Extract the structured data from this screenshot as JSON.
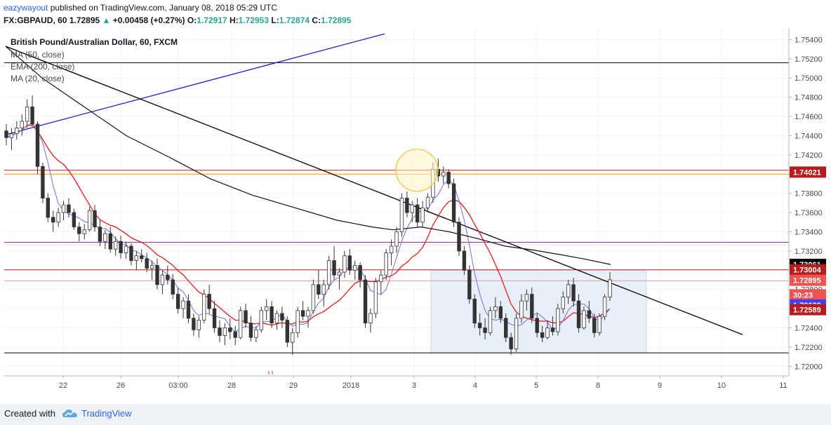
{
  "header": {
    "user": "eazywayout",
    "published_text": "published on TradingView.com, January 08, 2018 05:29 UTC",
    "symbol": "FX:GBPAUD, 60",
    "last": "1.72895",
    "change_arrow": "▲",
    "change": "+0.00458 (+0.27%)",
    "o_label": "O:",
    "o_value": "1.72917",
    "h_label": "H:",
    "h_value": "1.72953",
    "l_label": "L:",
    "l_value": "1.72874",
    "c_label": "C:",
    "c_value": "1.72895"
  },
  "legend": {
    "title": "British Pound/Australian Dollar, 60, FXCM",
    "items": [
      "MA (50, close)",
      "EMA (200, close)",
      "MA (20, close)"
    ]
  },
  "price_axis": {
    "ticks": [
      "1.75400",
      "1.75200",
      "1.75000",
      "1.74800",
      "1.74600",
      "1.74400",
      "1.74200",
      "1.74000",
      "1.73800",
      "1.73600",
      "1.73400",
      "1.73200",
      "1.73000",
      "1.72800",
      "1.72600",
      "1.72400",
      "1.72200",
      "1.72000"
    ],
    "price_labels": [
      {
        "text": "1.74021",
        "price": 1.74021,
        "bg": "#b71c1c",
        "fg": "#ffffff"
      },
      {
        "text": "1.73061",
        "price": 1.73061,
        "bg": "#000000",
        "fg": "#ffffff"
      },
      {
        "text": "1.73004",
        "price": 1.73004,
        "bg": "#b71c1c",
        "fg": "#ffffff"
      },
      {
        "text": "1.72895",
        "price": 1.72895,
        "bg": "#ef5350",
        "fg": "#ffffff"
      },
      {
        "text": "30:23",
        "price": 1.72744,
        "bg": "#ef5350",
        "fg": "#ffffff"
      },
      {
        "text": "1.72638",
        "price": 1.72638,
        "bg": "#3f3fff",
        "fg": "#ffffff"
      },
      {
        "text": "1.72589",
        "price": 1.72589,
        "bg": "#b71c1c",
        "fg": "#ffffff"
      }
    ]
  },
  "time_axis": {
    "ticks": [
      {
        "label": "22",
        "t": 90
      },
      {
        "label": "26",
        "t": 172
      },
      {
        "label": "03:00",
        "t": 254
      },
      {
        "label": "28",
        "t": 330
      },
      {
        "label": "29",
        "t": 418
      },
      {
        "label": "2018",
        "t": 500
      },
      {
        "label": "3",
        "t": 590
      },
      {
        "label": "4",
        "t": 677
      },
      {
        "label": "5",
        "t": 764
      },
      {
        "label": "8",
        "t": 852
      },
      {
        "label": "9",
        "t": 940
      },
      {
        "label": "10",
        "t": 1028
      },
      {
        "label": "11",
        "t": 1116
      }
    ]
  },
  "chart_data": {
    "type": "candlestick",
    "symbol": "GBPAUD",
    "timeframe": "60",
    "ylim": [
      1.719,
      1.7552
    ],
    "horizontal_levels": [
      {
        "price": 1.7516,
        "color": "#000000"
      },
      {
        "price": 1.7404,
        "color": "#b71c1c"
      },
      {
        "price": 1.74,
        "color": "#ff9800"
      },
      {
        "price": 1.7329,
        "color": "#9c27b0"
      },
      {
        "price": 1.73004,
        "color": "#b71c1c"
      },
      {
        "price": 1.7289,
        "color": "#ef9a9a"
      },
      {
        "price": 1.7214,
        "color": "#000000"
      }
    ],
    "trendlines": [
      {
        "t1": 8,
        "p1": 1.7441,
        "t2": 548,
        "p2": 1.7546,
        "color": "#1c1cd6"
      },
      {
        "t1": 8,
        "p1": 1.7533,
        "t2": 1058,
        "p2": 1.7233,
        "color": "#000000"
      }
    ],
    "candles_ohlc": [
      [
        1.7445,
        1.7452,
        1.743,
        1.7438
      ],
      [
        1.7438,
        1.7448,
        1.7425,
        1.7442
      ],
      [
        1.7442,
        1.7455,
        1.7436,
        1.7448
      ],
      [
        1.7448,
        1.7462,
        1.744,
        1.7455
      ],
      [
        1.7455,
        1.7478,
        1.7448,
        1.747
      ],
      [
        1.747,
        1.7482,
        1.745,
        1.7452
      ],
      [
        1.7452,
        1.7455,
        1.74,
        1.7408
      ],
      [
        1.7408,
        1.7412,
        1.737,
        1.7375
      ],
      [
        1.7375,
        1.738,
        1.735,
        1.7355
      ],
      [
        1.7355,
        1.7362,
        1.734,
        1.735
      ],
      [
        1.735,
        1.7365,
        1.7345,
        1.736
      ],
      [
        1.736,
        1.7372,
        1.7352,
        1.7368
      ],
      [
        1.7368,
        1.7375,
        1.7355,
        1.736
      ],
      [
        1.736,
        1.7364,
        1.7342,
        1.7345
      ],
      [
        1.7345,
        1.735,
        1.733,
        1.7338
      ],
      [
        1.7338,
        1.7348,
        1.7332,
        1.7342
      ],
      [
        1.7342,
        1.7366,
        1.734,
        1.7362
      ],
      [
        1.7362,
        1.7368,
        1.734,
        1.7345
      ],
      [
        1.7345,
        1.7352,
        1.7325,
        1.733
      ],
      [
        1.733,
        1.7342,
        1.7322,
        1.7338
      ],
      [
        1.7338,
        1.7345,
        1.7318,
        1.7322
      ],
      [
        1.7322,
        1.7335,
        1.7315,
        1.733
      ],
      [
        1.733,
        1.7336,
        1.7312,
        1.7318
      ],
      [
        1.7318,
        1.733,
        1.7312,
        1.7325
      ],
      [
        1.7325,
        1.7328,
        1.7305,
        1.731
      ],
      [
        1.731,
        1.732,
        1.73,
        1.7315
      ],
      [
        1.7315,
        1.7322,
        1.7308,
        1.7312
      ],
      [
        1.7312,
        1.7318,
        1.7298,
        1.7302
      ],
      [
        1.7302,
        1.731,
        1.729,
        1.7305
      ],
      [
        1.7305,
        1.7312,
        1.728,
        1.7285
      ],
      [
        1.7285,
        1.73,
        1.7275,
        1.7295
      ],
      [
        1.7295,
        1.7305,
        1.7285,
        1.729
      ],
      [
        1.729,
        1.7296,
        1.727,
        1.7275
      ],
      [
        1.7275,
        1.7282,
        1.7255,
        1.726
      ],
      [
        1.726,
        1.7272,
        1.725,
        1.7268
      ],
      [
        1.7268,
        1.7275,
        1.7245,
        1.725
      ],
      [
        1.725,
        1.7255,
        1.7232,
        1.7238
      ],
      [
        1.7238,
        1.7252,
        1.723,
        1.7248
      ],
      [
        1.7248,
        1.728,
        1.7245,
        1.7275
      ],
      [
        1.7275,
        1.7285,
        1.7255,
        1.726
      ],
      [
        1.726,
        1.7268,
        1.7235,
        1.724
      ],
      [
        1.724,
        1.7248,
        1.7225,
        1.7232
      ],
      [
        1.7232,
        1.7245,
        1.7222,
        1.724
      ],
      [
        1.724,
        1.725,
        1.7228,
        1.7236
      ],
      [
        1.7236,
        1.7242,
        1.7222,
        1.723
      ],
      [
        1.723,
        1.7262,
        1.7228,
        1.7258
      ],
      [
        1.7258,
        1.7265,
        1.724,
        1.7245
      ],
      [
        1.7245,
        1.7252,
        1.7226,
        1.723
      ],
      [
        1.723,
        1.7242,
        1.7225,
        1.7238
      ],
      [
        1.7238,
        1.7262,
        1.7235,
        1.7258
      ],
      [
        1.7258,
        1.727,
        1.7248,
        1.7262
      ],
      [
        1.7262,
        1.7268,
        1.724,
        1.7245
      ],
      [
        1.7245,
        1.7258,
        1.7238,
        1.7255
      ],
      [
        1.7255,
        1.7262,
        1.724,
        1.7248
      ],
      [
        1.7248,
        1.7252,
        1.722,
        1.7225
      ],
      [
        1.7225,
        1.724,
        1.7212,
        1.7235
      ],
      [
        1.7235,
        1.7262,
        1.723,
        1.7258
      ],
      [
        1.7258,
        1.7268,
        1.7248,
        1.7252
      ],
      [
        1.7252,
        1.7262,
        1.724,
        1.7258
      ],
      [
        1.7258,
        1.729,
        1.7255,
        1.7285
      ],
      [
        1.7285,
        1.73,
        1.727,
        1.7275
      ],
      [
        1.7275,
        1.729,
        1.7262,
        1.7285
      ],
      [
        1.7285,
        1.7315,
        1.728,
        1.731
      ],
      [
        1.731,
        1.7325,
        1.729,
        1.7295
      ],
      [
        1.7295,
        1.7302,
        1.728,
        1.7298
      ],
      [
        1.7298,
        1.732,
        1.7292,
        1.7315
      ],
      [
        1.7315,
        1.7322,
        1.7295,
        1.73
      ],
      [
        1.73,
        1.731,
        1.729,
        1.7305
      ],
      [
        1.7305,
        1.7308,
        1.7282,
        1.729
      ],
      [
        1.729,
        1.7295,
        1.724,
        1.7245
      ],
      [
        1.7245,
        1.726,
        1.7235,
        1.7255
      ],
      [
        1.7255,
        1.7292,
        1.725,
        1.7288
      ],
      [
        1.7288,
        1.73,
        1.7275,
        1.7295
      ],
      [
        1.7295,
        1.7322,
        1.729,
        1.7318
      ],
      [
        1.7318,
        1.7332,
        1.7305,
        1.7325
      ],
      [
        1.7325,
        1.7345,
        1.7318,
        1.734
      ],
      [
        1.734,
        1.738,
        1.7335,
        1.7375
      ],
      [
        1.7375,
        1.7382,
        1.7355,
        1.736
      ],
      [
        1.736,
        1.7372,
        1.735,
        1.7368
      ],
      [
        1.7368,
        1.7375,
        1.7345,
        1.735
      ],
      [
        1.735,
        1.7372,
        1.7345,
        1.7365
      ],
      [
        1.7365,
        1.738,
        1.736,
        1.7376
      ],
      [
        1.7376,
        1.7412,
        1.737,
        1.7405
      ],
      [
        1.7405,
        1.7416,
        1.7392,
        1.7398
      ],
      [
        1.7398,
        1.7408,
        1.739,
        1.7402
      ],
      [
        1.7402,
        1.7405,
        1.7385,
        1.739
      ],
      [
        1.739,
        1.7395,
        1.7345,
        1.735
      ],
      [
        1.735,
        1.7355,
        1.7315,
        1.732
      ],
      [
        1.732,
        1.7325,
        1.7295,
        1.73
      ],
      [
        1.73,
        1.7305,
        1.7265,
        1.727
      ],
      [
        1.727,
        1.7275,
        1.724,
        1.7245
      ],
      [
        1.7245,
        1.7255,
        1.7232,
        1.724
      ],
      [
        1.724,
        1.725,
        1.7228,
        1.7235
      ],
      [
        1.7235,
        1.7262,
        1.7232,
        1.7258
      ],
      [
        1.7258,
        1.7272,
        1.725,
        1.7262
      ],
      [
        1.7262,
        1.7268,
        1.7245,
        1.725
      ],
      [
        1.725,
        1.7255,
        1.7225,
        1.723
      ],
      [
        1.723,
        1.7235,
        1.7212,
        1.7218
      ],
      [
        1.7218,
        1.7255,
        1.7215,
        1.725
      ],
      [
        1.725,
        1.7275,
        1.7245,
        1.7268
      ],
      [
        1.7268,
        1.728,
        1.7258,
        1.7275
      ],
      [
        1.7275,
        1.7282,
        1.7245,
        1.725
      ],
      [
        1.725,
        1.7255,
        1.723,
        1.7235
      ],
      [
        1.7235,
        1.7242,
        1.7225,
        1.723
      ],
      [
        1.723,
        1.7248,
        1.7228,
        1.724
      ],
      [
        1.724,
        1.7252,
        1.7232,
        1.7236
      ],
      [
        1.7236,
        1.7265,
        1.7232,
        1.726
      ],
      [
        1.726,
        1.7278,
        1.7255,
        1.7272
      ],
      [
        1.7272,
        1.729,
        1.7265,
        1.7285
      ],
      [
        1.7285,
        1.7292,
        1.7262,
        1.7268
      ],
      [
        1.7268,
        1.7275,
        1.7235,
        1.724
      ],
      [
        1.724,
        1.7262,
        1.7238,
        1.7258
      ],
      [
        1.7258,
        1.7268,
        1.7245,
        1.725
      ],
      [
        1.725,
        1.7255,
        1.723,
        1.7235
      ],
      [
        1.7235,
        1.7255,
        1.7232,
        1.7252
      ],
      [
        1.7252,
        1.7275,
        1.7248,
        1.7272
      ],
      [
        1.7272,
        1.7298,
        1.7268,
        1.729
      ]
    ],
    "overlays": [
      {
        "name": "MA (50, close)",
        "color": "#e51c1c"
      },
      {
        "name": "EMA (200, close)",
        "color": "#111111"
      },
      {
        "name": "MA (20, close)",
        "color": "#7b68ee"
      }
    ],
    "ema200": [
      [
        8,
        1.7533
      ],
      [
        60,
        1.75
      ],
      [
        120,
        1.747
      ],
      [
        180,
        1.744
      ],
      [
        240,
        1.7418
      ],
      [
        300,
        1.7395
      ],
      [
        360,
        1.7378
      ],
      [
        420,
        1.7365
      ],
      [
        480,
        1.7352
      ],
      [
        530,
        1.7345
      ],
      [
        560,
        1.7342
      ],
      [
        600,
        1.7345
      ],
      [
        640,
        1.734
      ],
      [
        680,
        1.7333
      ],
      [
        720,
        1.7325
      ],
      [
        760,
        1.7321
      ],
      [
        800,
        1.7316
      ],
      [
        830,
        1.7312
      ],
      [
        870,
        1.7306
      ]
    ],
    "annotations": [
      {
        "type": "circle",
        "t": 594,
        "p": 1.7404,
        "color": "#f5c542"
      },
      {
        "type": "rectangle",
        "t1": 614,
        "p1": 1.73004,
        "t2": 921,
        "p2": 1.7214,
        "color": "#c5d8f0"
      }
    ]
  },
  "footer": {
    "created": "Created with",
    "brand": "TradingView"
  }
}
